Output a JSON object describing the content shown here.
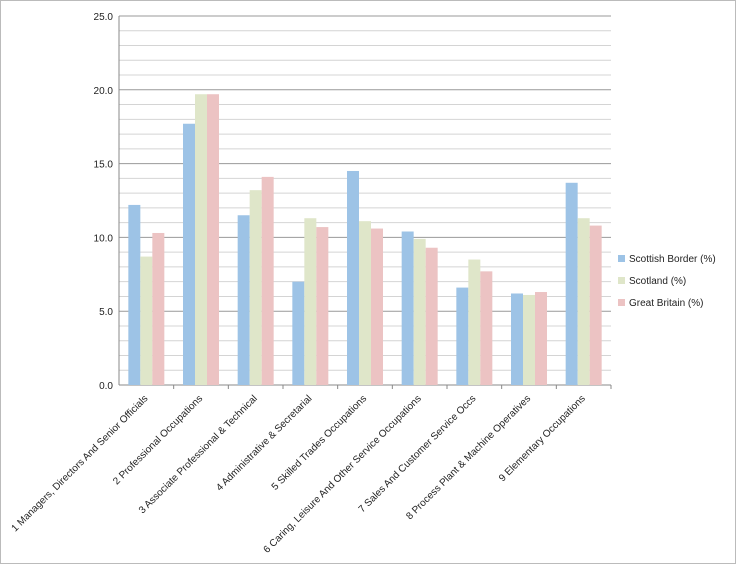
{
  "chart_data": {
    "type": "bar",
    "title": "",
    "xlabel": "",
    "ylabel": "",
    "ylim": [
      0,
      25
    ],
    "yticks": [
      "0.0",
      "5.0",
      "10.0",
      "15.0",
      "20.0",
      "25.0"
    ],
    "minor_grid_step": 1,
    "grid": true,
    "legend_position": "right",
    "categories": [
      "1 Managers, Directors And Senior Officials",
      "2 Professional Occupations",
      "3 Associate Professional & Technical",
      "4 Administrative & Secretarial",
      "5 Skilled Trades Occupations",
      "6 Caring, Leisure And Other Service Occupations",
      "7 Sales And Customer Service Occs",
      "8 Process Plant & Machine Operatives",
      "9 Elementary Occupations"
    ],
    "series": [
      {
        "name": "Scottish Border (%)",
        "color": "#9dc3e6",
        "values": [
          12.2,
          17.7,
          11.5,
          7.0,
          14.5,
          10.4,
          6.6,
          6.2,
          13.7
        ]
      },
      {
        "name": "Scotland (%)",
        "color": "#dfe6c9",
        "values": [
          8.7,
          19.7,
          13.2,
          11.3,
          11.1,
          9.9,
          8.5,
          6.1,
          11.3
        ]
      },
      {
        "name": "Great Britain (%)",
        "color": "#ecc3c3",
        "values": [
          10.3,
          19.7,
          14.1,
          10.7,
          10.6,
          9.3,
          7.7,
          6.3,
          10.8
        ]
      }
    ]
  }
}
